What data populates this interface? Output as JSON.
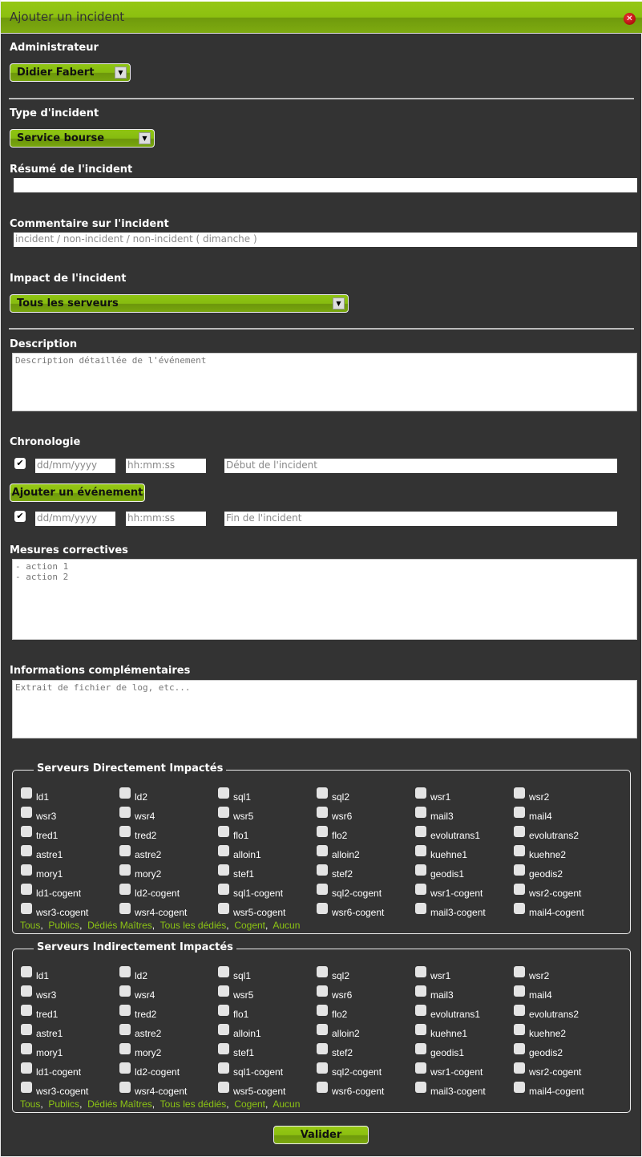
{
  "dialog": {
    "title": "Ajouter un incident",
    "close_icon": "close-icon"
  },
  "admin": {
    "label": "Administrateur",
    "value": "Didier Fabert"
  },
  "type": {
    "label": "Type d'incident",
    "value": "Service bourse"
  },
  "resume": {
    "label": "Résumé de l'incident",
    "value": ""
  },
  "comment": {
    "label": "Commentaire sur l'incident",
    "value": "incident / non-incident / non-incident ( dimanche )"
  },
  "impact": {
    "label": "Impact de l'incident",
    "value": "Tous les serveurs"
  },
  "description": {
    "label": "Description",
    "placeholder": "Description détaillée de l'événement"
  },
  "chronologie": {
    "label": "Chronologie",
    "start": {
      "checked": true,
      "date_placeholder": "dd/mm/yyyy",
      "time_placeholder": "hh:mm:ss",
      "text_placeholder": "Début de l'incident"
    },
    "add_button": "Ajouter un événement",
    "end": {
      "checked": true,
      "date_placeholder": "dd/mm/yyyy",
      "time_placeholder": "hh:mm:ss",
      "text_placeholder": "Fin de l'incident"
    }
  },
  "mesures": {
    "label": "Mesures correctives",
    "value": "- action 1\n- action 2"
  },
  "infos": {
    "label": "Informations complémentaires",
    "placeholder": "Extrait de fichier de log, etc..."
  },
  "servers": [
    "ld1",
    "ld2",
    "sql1",
    "sql2",
    "wsr1",
    "wsr2",
    "wsr3",
    "wsr4",
    "wsr5",
    "wsr6",
    "mail3",
    "mail4",
    "tred1",
    "tred2",
    "flo1",
    "flo2",
    "evolutrans1",
    "evolutrans2",
    "astre1",
    "astre2",
    "alloin1",
    "alloin2",
    "kuehne1",
    "kuehne2",
    "mory1",
    "mory2",
    "stef1",
    "stef2",
    "geodis1",
    "geodis2",
    "ld1-cogent",
    "ld2-cogent",
    "sql1-cogent",
    "sql2-cogent",
    "wsr1-cogent",
    "wsr2-cogent",
    "wsr3-cogent",
    "wsr4-cogent",
    "wsr5-cogent",
    "wsr6-cogent",
    "mail3-cogent",
    "mail4-cogent"
  ],
  "select_links": [
    "Tous",
    "Publics",
    "Dédiés Maîtres",
    "Tous les dédiés",
    "Cogent",
    "Aucun"
  ],
  "direct": {
    "legend": "Serveurs Directement Impactés"
  },
  "indirect": {
    "legend": "Serveurs Indirectement Impactés"
  },
  "submit": "Valider"
}
